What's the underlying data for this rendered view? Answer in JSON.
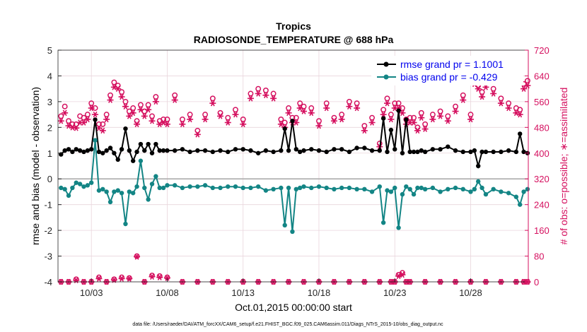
{
  "chart_data": {
    "type": "line",
    "title": "Tropics",
    "subtitle": "RADIOSONDE_TEMPERATURE @ 688 hPa",
    "xlabel": "Oct.01,2015 00:00:00 start",
    "ylabel_left": "rmse and bias (model - observation)",
    "ylabel_right": "# of obs: o=possible; ∗=assimilated",
    "footnote": "data file: /Users/raeder/DAI/ATM_forcXX/CAM6_setup/f.e21.FHIST_BGC.f09_025.CAM6assim.011/Diags_NTrS_2015-10/obs_diag_output.nc",
    "xlim_days": [
      0.8,
      31.8
    ],
    "ylim_left": [
      -4,
      5
    ],
    "ylim_right": [
      0,
      720
    ],
    "x_ticks": [
      {
        "day": 3,
        "label": "10/03"
      },
      {
        "day": 8,
        "label": "10/08"
      },
      {
        "day": 13,
        "label": "10/13"
      },
      {
        "day": 18,
        "label": "10/18"
      },
      {
        "day": 23,
        "label": "10/23"
      },
      {
        "day": 28,
        "label": "10/28"
      }
    ],
    "y_left_ticks": [
      -4,
      -3,
      -2,
      -1,
      0,
      1,
      2,
      3,
      4,
      5
    ],
    "y_right_ticks": [
      0,
      80,
      160,
      240,
      320,
      400,
      480,
      560,
      640,
      720
    ],
    "grid": true,
    "legend_position": "top-right",
    "colors": {
      "rmse": "#000000",
      "bias": "#138585",
      "obs": "#d5105f",
      "zero_line": "#a6a6a6",
      "grid": "#e9d5dc",
      "legend_text": "#0000ee"
    },
    "series": [
      {
        "name": "rmse grand pr = 1.1001",
        "key": "rmse",
        "axis": "left",
        "x": [
          1,
          1.25,
          1.5,
          1.75,
          2,
          2.25,
          2.5,
          2.75,
          3,
          3.25,
          3.5,
          3.75,
          4,
          4.25,
          4.5,
          4.75,
          5,
          5.25,
          5.5,
          5.75,
          6,
          6.25,
          6.5,
          6.75,
          7,
          7.25,
          7.5,
          7.75,
          8,
          8.5,
          9,
          9.5,
          10,
          10.5,
          11,
          11.5,
          12,
          12.5,
          13,
          13.5,
          14,
          14.5,
          15,
          15.5,
          15.75,
          16,
          16.25,
          16.5,
          16.75,
          17,
          17.5,
          18,
          18.5,
          19,
          19.5,
          20,
          20.5,
          21,
          21.5,
          22,
          22.25,
          22.5,
          22.75,
          23,
          23.25,
          23.5,
          23.75,
          24,
          24.25,
          24.5,
          24.75,
          25,
          25.5,
          26,
          26.5,
          27,
          27.5,
          28,
          28.25,
          28.5,
          28.75,
          29,
          29.5,
          30,
          30.5,
          31,
          31.25,
          31.5,
          31.75
        ],
        "values": [
          0.95,
          1.1,
          1.15,
          1.05,
          1.15,
          1.1,
          1.05,
          1.1,
          1.15,
          2.3,
          1.05,
          1.0,
          1.1,
          1.2,
          1.0,
          0.75,
          1.15,
          1.95,
          1.1,
          0.7,
          1.05,
          1.35,
          1.1,
          1.35,
          1.0,
          1.35,
          1.1,
          1.1,
          1.1,
          1.1,
          1.15,
          1.05,
          1.1,
          1.1,
          1.05,
          1.1,
          1.05,
          1.15,
          1.15,
          1.1,
          1.0,
          1.1,
          1.05,
          1.1,
          1.95,
          1.1,
          2.25,
          1.15,
          1.05,
          1.1,
          1.15,
          1.1,
          1.05,
          1.15,
          1.15,
          1.05,
          1.2,
          1.2,
          1.1,
          1.1,
          2.35,
          1.05,
          1.9,
          1.15,
          2.65,
          1.0,
          2.3,
          1.05,
          1.05,
          1.05,
          1.1,
          1.05,
          1.15,
          1.15,
          1.25,
          1.1,
          1.05,
          1.05,
          1.1,
          0.5,
          1.05,
          1.05,
          1.05,
          1.05,
          1.1,
          1.05,
          1.75,
          1.05,
          1.0
        ]
      },
      {
        "name": "bias grand pr = -0.429",
        "key": "bias",
        "axis": "left",
        "x": [
          1,
          1.25,
          1.5,
          1.75,
          2,
          2.25,
          2.5,
          2.75,
          3,
          3.25,
          3.5,
          3.75,
          4,
          4.25,
          4.5,
          4.75,
          5,
          5.25,
          5.5,
          5.75,
          6,
          6.25,
          6.5,
          6.75,
          7,
          7.25,
          7.5,
          7.75,
          8,
          8.5,
          9,
          9.5,
          10,
          10.5,
          11,
          11.5,
          12,
          12.5,
          13,
          13.5,
          14,
          14.5,
          15,
          15.5,
          15.75,
          16,
          16.25,
          16.5,
          16.75,
          17,
          17.5,
          18,
          18.5,
          19,
          19.5,
          20,
          20.5,
          21,
          21.5,
          22,
          22.25,
          22.5,
          22.75,
          23,
          23.25,
          23.5,
          23.75,
          24,
          24.25,
          24.5,
          24.75,
          25,
          25.5,
          26,
          26.5,
          27,
          27.5,
          28,
          28.25,
          28.5,
          28.75,
          29,
          29.5,
          30,
          30.5,
          31,
          31.25,
          31.5,
          31.75
        ],
        "values": [
          -0.35,
          -0.4,
          -0.65,
          -0.35,
          -0.15,
          -0.2,
          -0.3,
          -0.25,
          -0.15,
          1.5,
          -0.45,
          -0.4,
          -0.5,
          -0.9,
          -0.5,
          -0.45,
          -0.55,
          -1.75,
          -0.5,
          -0.55,
          -0.3,
          0.7,
          -0.35,
          -0.8,
          -0.2,
          0.1,
          -0.35,
          -0.35,
          -0.25,
          -0.25,
          -0.35,
          -0.3,
          -0.3,
          -0.25,
          -0.35,
          -0.35,
          -0.3,
          -0.3,
          -0.35,
          -0.35,
          -0.3,
          -0.45,
          -0.4,
          -0.35,
          -1.8,
          -0.35,
          -2.05,
          -0.4,
          -0.35,
          -0.3,
          -0.35,
          -0.3,
          -0.35,
          -0.4,
          -0.35,
          -0.35,
          -0.4,
          -0.4,
          -0.5,
          -0.3,
          -1.7,
          -0.45,
          -0.5,
          -0.35,
          -1.9,
          -0.6,
          -0.3,
          -0.4,
          -0.6,
          -0.35,
          -0.35,
          -0.4,
          -0.35,
          -0.5,
          -0.4,
          -0.35,
          -0.4,
          -0.5,
          -0.4,
          -0.1,
          -0.35,
          -0.6,
          -0.4,
          -0.5,
          -0.55,
          -0.7,
          -1.0,
          -0.5,
          -0.4
        ]
      },
      {
        "name": "obs possible",
        "key": "possible",
        "axis": "right",
        "marker": "o",
        "x": [
          1,
          1.25,
          1.5,
          1.75,
          2,
          2.25,
          2.5,
          2.75,
          3,
          3.25,
          3.5,
          3.75,
          4,
          4.25,
          4.5,
          4.75,
          5,
          5.25,
          5.5,
          5.75,
          6,
          6.25,
          6.5,
          6.75,
          7,
          7.25,
          7.5,
          7.75,
          8,
          8.5,
          9,
          9.5,
          10,
          10.5,
          11,
          11.5,
          12,
          12.5,
          13,
          13.5,
          14,
          14.5,
          15,
          15.5,
          15.75,
          16,
          16.25,
          16.5,
          16.75,
          17,
          17.5,
          18,
          18.5,
          19,
          19.5,
          20,
          20.5,
          21,
          21.5,
          22,
          22.25,
          22.5,
          22.75,
          23,
          23.25,
          23.5,
          23.75,
          24,
          24.25,
          24.5,
          24.75,
          25,
          25.5,
          26,
          26.5,
          27,
          27.5,
          28,
          28.25,
          28.5,
          28.75,
          29,
          29.5,
          30,
          30.5,
          31,
          31.25,
          31.5,
          31.75
        ],
        "values": [
          515,
          545,
          500,
          490,
          490,
          515,
          510,
          520,
          555,
          540,
          490,
          490,
          520,
          580,
          620,
          610,
          590,
          560,
          530,
          540,
          500,
          550,
          530,
          550,
          515,
          575,
          500,
          505,
          505,
          580,
          505,
          520,
          470,
          520,
          570,
          525,
          510,
          535,
          505,
          585,
          600,
          595,
          585,
          505,
          495,
          540,
          510,
          510,
          555,
          545,
          540,
          500,
          555,
          510,
          520,
          560,
          555,
          485,
          510,
          430,
          535,
          570,
          520,
          555,
          555,
          540,
          505,
          510,
          510,
          480,
          525,
          490,
          520,
          530,
          515,
          545,
          580,
          520,
          630,
          610,
          590,
          620,
          600,
          570,
          555,
          540,
          535,
          615,
          625
        ]
      },
      {
        "name": "obs assimilated",
        "key": "assimilated",
        "axis": "right",
        "marker": "*",
        "x": [
          1,
          1.25,
          1.5,
          1.75,
          2,
          2.25,
          2.5,
          2.75,
          3,
          3.25,
          3.5,
          3.75,
          4,
          4.25,
          4.5,
          4.75,
          5,
          5.25,
          5.5,
          5.75,
          6,
          6.25,
          6.5,
          6.75,
          7,
          7.25,
          7.5,
          7.75,
          8,
          8.5,
          9,
          9.5,
          10,
          10.5,
          11,
          11.5,
          12,
          12.5,
          13,
          13.5,
          14,
          14.5,
          15,
          15.5,
          15.75,
          16,
          16.25,
          16.5,
          16.75,
          17,
          17.5,
          18,
          18.5,
          19,
          19.5,
          20,
          20.5,
          21,
          21.5,
          22,
          22.25,
          22.5,
          22.75,
          23,
          23.25,
          23.5,
          23.75,
          24,
          24.25,
          24.5,
          24.75,
          25,
          25.5,
          26,
          26.5,
          27,
          27.5,
          28,
          28.25,
          28.5,
          28.75,
          29,
          29.5,
          30,
          30.5,
          31,
          31.25,
          31.5,
          31.75
        ],
        "values": [
          500,
          525,
          485,
          480,
          478,
          495,
          495,
          505,
          540,
          520,
          478,
          470,
          505,
          565,
          605,
          600,
          575,
          545,
          515,
          525,
          490,
          535,
          515,
          535,
          500,
          560,
          490,
          495,
          490,
          565,
          490,
          505,
          458,
          505,
          555,
          515,
          495,
          520,
          490,
          570,
          585,
          580,
          570,
          490,
          480,
          525,
          495,
          495,
          540,
          530,
          525,
          485,
          540,
          500,
          505,
          545,
          540,
          470,
          495,
          420,
          520,
          555,
          505,
          540,
          540,
          525,
          490,
          495,
          495,
          470,
          510,
          475,
          505,
          515,
          500,
          530,
          565,
          505,
          615,
          600,
          575,
          605,
          585,
          555,
          540,
          525,
          520,
          600,
          610
        ]
      },
      {
        "name": "obs possible low",
        "key": "possible_low",
        "axis": "right",
        "marker": "o",
        "x": [
          1,
          1.5,
          2,
          2.5,
          3,
          3.5,
          4,
          4.5,
          5,
          5.5,
          6,
          6.5,
          7,
          7.5,
          8,
          9,
          10,
          11,
          12,
          13,
          14,
          15,
          16,
          17,
          18,
          19,
          20,
          21,
          22,
          22.75,
          23,
          23.25,
          23.5,
          23.75,
          24,
          25,
          26,
          27,
          28,
          29,
          30,
          31,
          31.5,
          31.75
        ],
        "values": [
          0,
          0,
          8,
          0,
          0,
          14,
          0,
          8,
          14,
          12,
          80,
          0,
          20,
          18,
          14,
          0,
          0,
          0,
          0,
          0,
          0,
          0,
          0,
          0,
          0,
          0,
          0,
          0,
          0,
          0,
          0,
          22,
          28,
          0,
          0,
          0,
          0,
          0,
          0,
          0,
          0,
          0,
          0,
          0
        ]
      },
      {
        "name": "obs assimilated low",
        "key": "assimilated_low",
        "axis": "right",
        "marker": "*",
        "x": [
          1,
          1.5,
          2,
          2.5,
          3,
          3.5,
          4,
          4.5,
          5,
          5.5,
          6,
          6.5,
          7,
          7.5,
          8,
          9,
          10,
          11,
          12,
          13,
          14,
          15,
          16,
          17,
          18,
          19,
          20,
          21,
          22,
          22.75,
          23,
          23.25,
          23.5,
          23.75,
          24,
          25,
          26,
          27,
          28,
          29,
          30,
          31,
          31.5,
          31.75
        ],
        "values": [
          0,
          0,
          5,
          0,
          0,
          10,
          0,
          6,
          10,
          10,
          78,
          0,
          16,
          14,
          12,
          0,
          0,
          0,
          0,
          0,
          0,
          0,
          0,
          0,
          0,
          0,
          0,
          0,
          0,
          0,
          0,
          18,
          22,
          0,
          0,
          0,
          0,
          0,
          0,
          0,
          0,
          0,
          0,
          0
        ]
      }
    ]
  }
}
